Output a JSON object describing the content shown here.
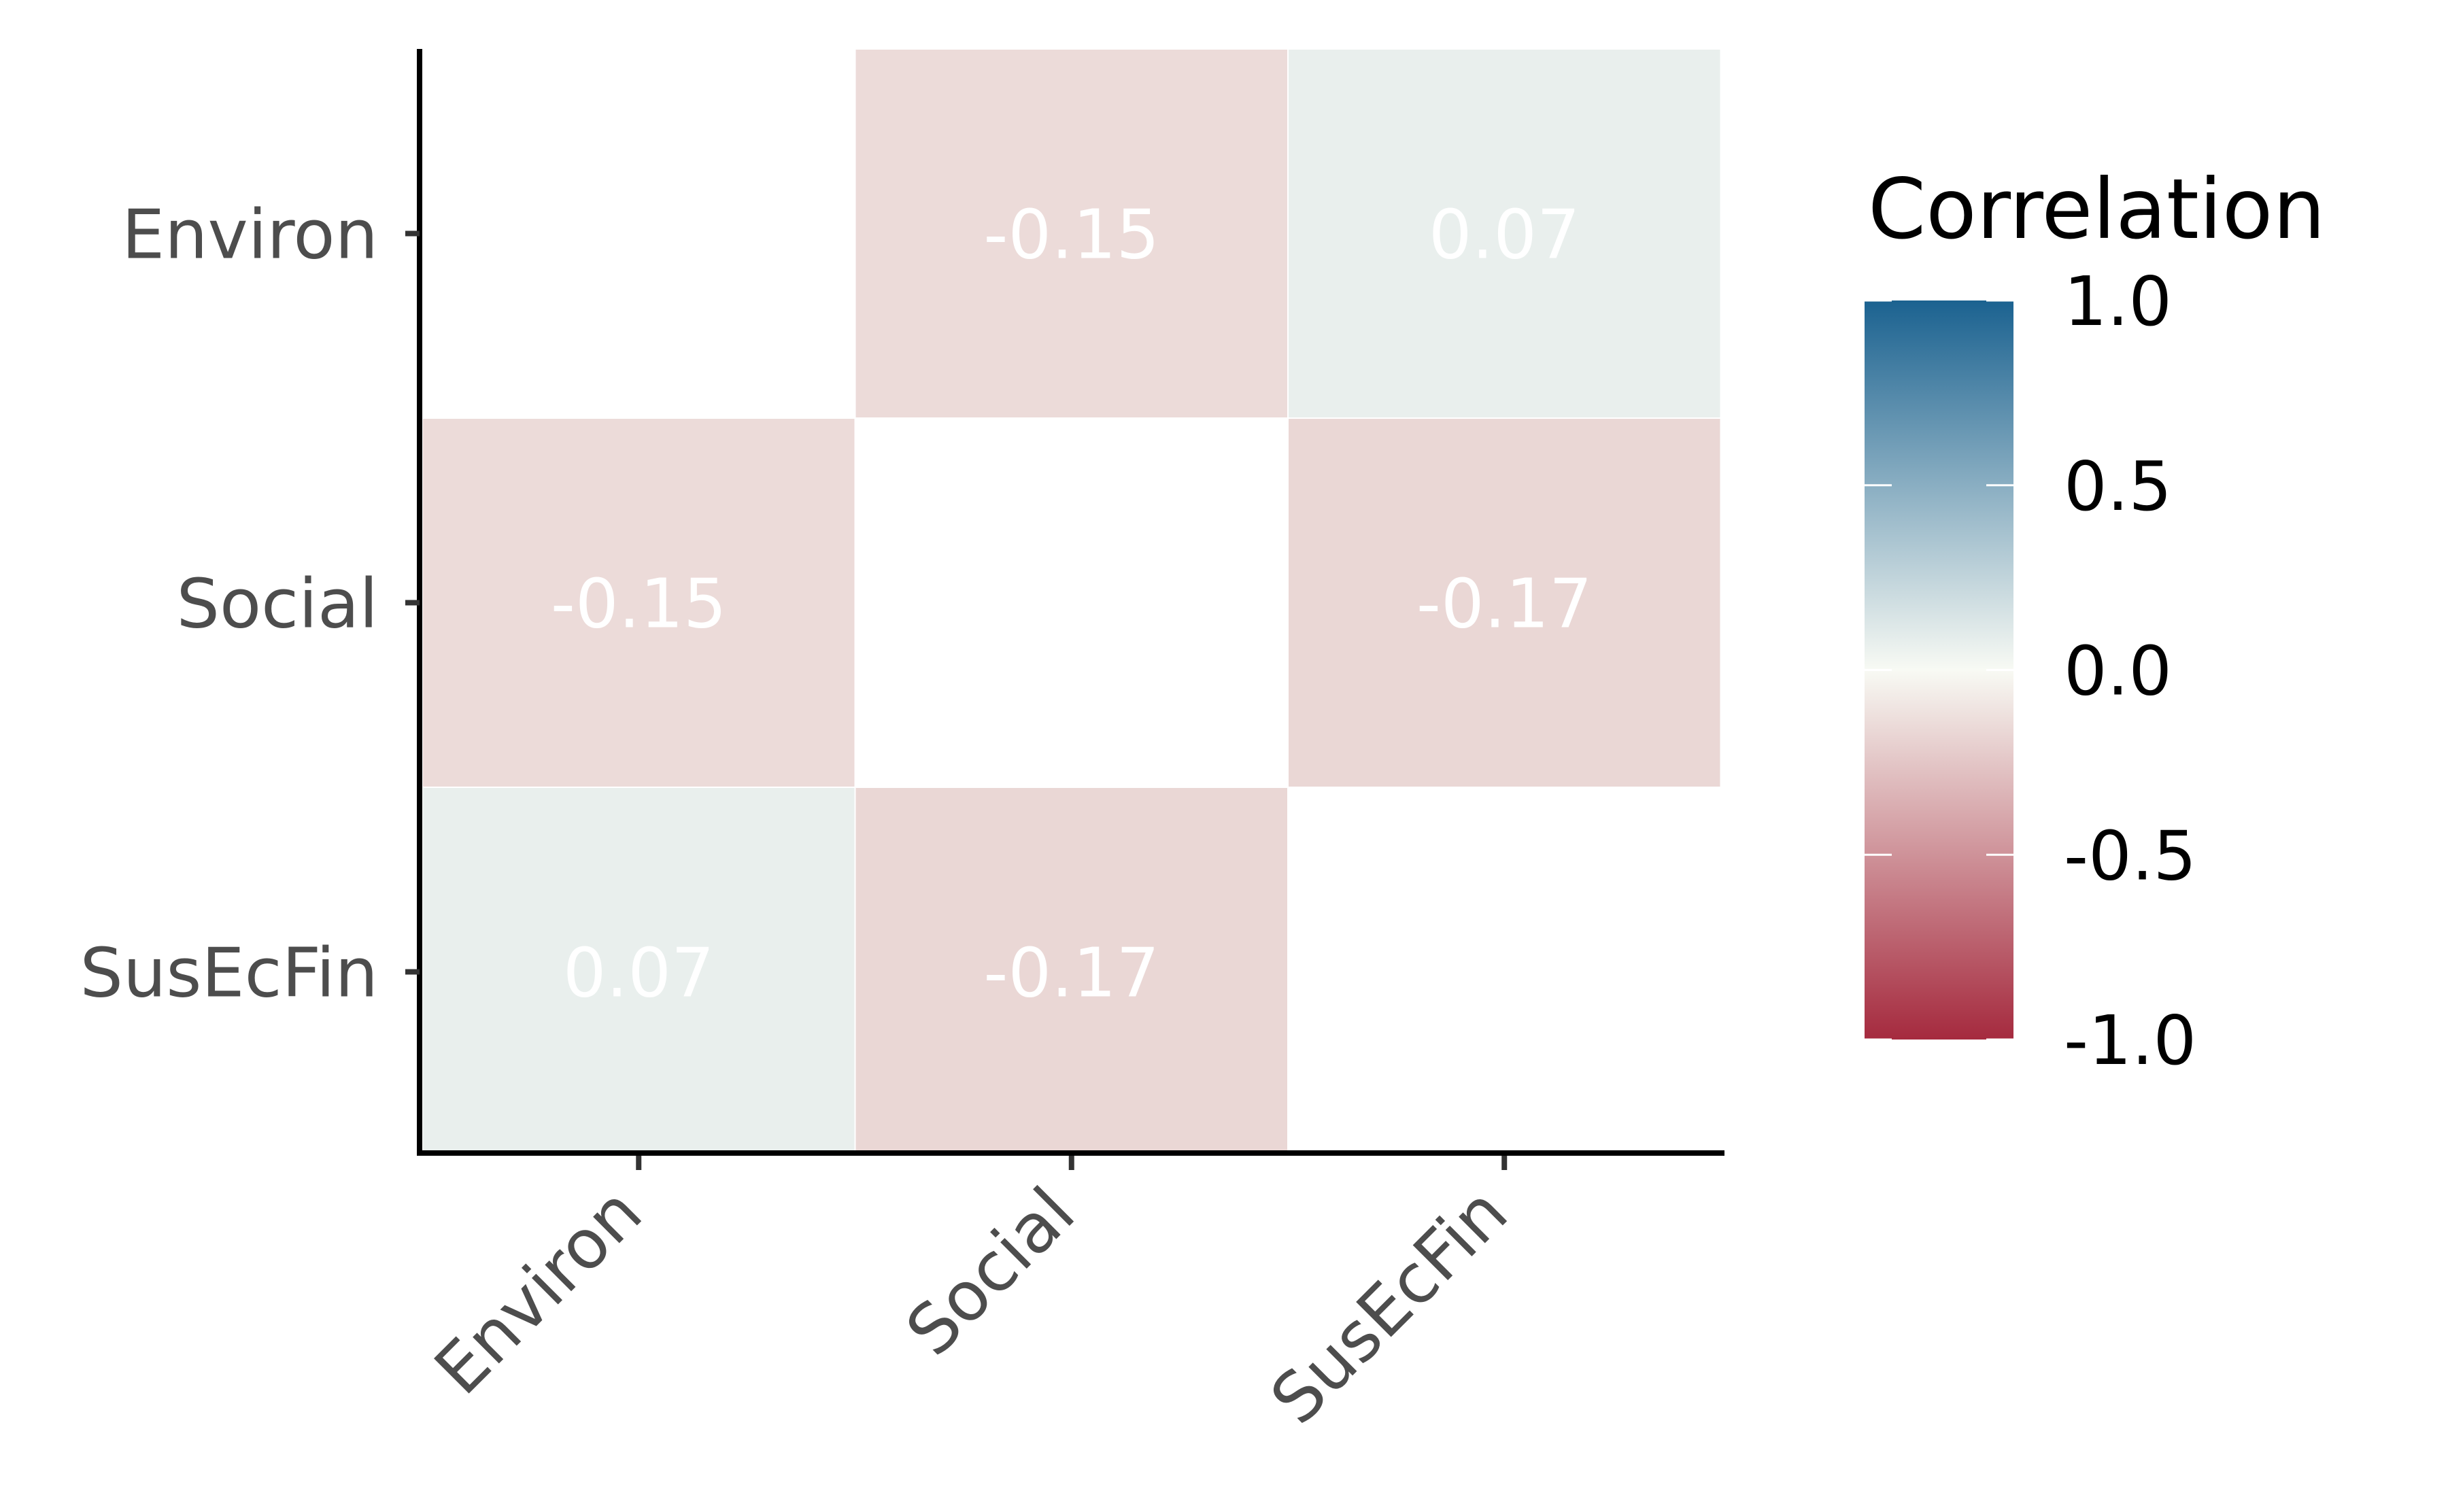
{
  "chart_data": {
    "type": "heatmap",
    "title": "",
    "xlabel": "",
    "ylabel": "",
    "x_categories": [
      "Environ",
      "Social",
      "SusEcFin"
    ],
    "y_categories": [
      "Environ",
      "Social",
      "SusEcFin"
    ],
    "cells": [
      {
        "x": "Social",
        "y": "Environ",
        "value": -0.15,
        "label": "-0.15"
      },
      {
        "x": "SusEcFin",
        "y": "Environ",
        "value": 0.07,
        "label": "0.07"
      },
      {
        "x": "Environ",
        "y": "Social",
        "value": -0.15,
        "label": "-0.15"
      },
      {
        "x": "SusEcFin",
        "y": "Social",
        "value": -0.17,
        "label": "-0.17"
      },
      {
        "x": "Environ",
        "y": "SusEcFin",
        "value": 0.07,
        "label": "0.07"
      },
      {
        "x": "Social",
        "y": "SusEcFin",
        "value": -0.17,
        "label": "-0.17"
      }
    ],
    "legend": {
      "title": "Correlation",
      "range": [
        -1,
        1
      ],
      "ticks": [
        {
          "value": 1.0,
          "label": "1.0"
        },
        {
          "value": 0.5,
          "label": "0.5"
        },
        {
          "value": 0.0,
          "label": "0.0"
        },
        {
          "value": -0.5,
          "label": "-0.5"
        },
        {
          "value": -1.0,
          "label": "-1.0"
        }
      ],
      "colors": {
        "low": "#A52A3E",
        "mid": "#F8FAF4",
        "high": "#1B6290"
      }
    }
  }
}
